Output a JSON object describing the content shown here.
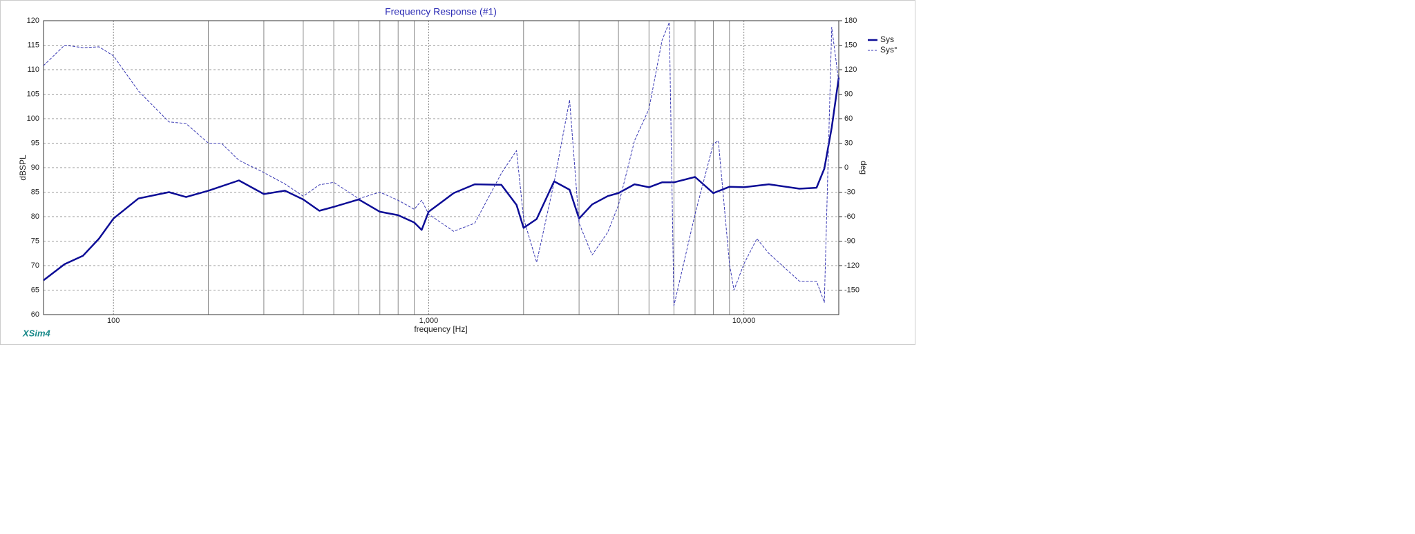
{
  "chart_data": {
    "type": "line",
    "title": "Frequency Response (#1)",
    "x_label": "frequency [Hz]",
    "y_label": "dBSPL",
    "y2_label": "deg",
    "watermark": "XSim4",
    "xscale": "log",
    "xlim": [
      60,
      20000
    ],
    "xticks": [
      100,
      {
        "value": 1000,
        "label": "1,000"
      },
      {
        "value": 10000,
        "label": "10,000"
      }
    ],
    "x_minor_grid": [
      200,
      300,
      400,
      500,
      600,
      700,
      800,
      900,
      2000,
      3000,
      4000,
      5000,
      6000,
      7000,
      8000,
      9000
    ],
    "ylim": [
      60,
      120
    ],
    "yticks": [
      60,
      65,
      70,
      75,
      80,
      85,
      90,
      95,
      100,
      105,
      110,
      115,
      120
    ],
    "y2lim": [
      -180,
      180
    ],
    "y2ticks": [
      -150,
      -120,
      -90,
      -60,
      -30,
      0,
      30,
      60,
      90,
      120,
      150,
      180
    ],
    "grid": true,
    "legend": "right",
    "series": [
      {
        "name": "Sys",
        "color": "#0c0c96",
        "dash": false,
        "x": [
          60,
          70,
          80,
          90,
          100,
          120,
          150,
          170,
          200,
          250,
          300,
          350,
          400,
          450,
          500,
          600,
          700,
          800,
          900,
          950,
          1000,
          1200,
          1400,
          1700,
          1900,
          2000,
          2200,
          2500,
          2800,
          3000,
          3300,
          3700,
          4000,
          4500,
          5000,
          5500,
          6000,
          7000,
          8000,
          9000,
          10000,
          12000,
          15000,
          17000,
          18000,
          19000,
          20000
        ],
        "values": [
          67,
          70.3,
          72,
          75.5,
          79.6,
          83.7,
          85,
          84,
          85.3,
          87.4,
          84.6,
          85.3,
          83.5,
          81.2,
          82,
          83.5,
          81,
          80.3,
          78.8,
          77.3,
          81,
          84.8,
          86.6,
          86.5,
          82.4,
          77.7,
          79.5,
          87.2,
          85.5,
          79.6,
          82.5,
          84.2,
          84.8,
          86.6,
          86,
          87,
          87,
          88.1,
          84.8,
          86.1,
          86,
          86.6,
          85.7,
          85.9,
          89.8,
          98.2,
          108.4
        ]
      },
      {
        "name": "Sys°",
        "color": "#3a3ab4",
        "dash": true,
        "axis": "y2",
        "x": [
          60,
          70,
          80,
          90,
          100,
          120,
          150,
          170,
          200,
          220,
          250,
          300,
          350,
          400,
          450,
          500,
          600,
          700,
          800,
          900,
          950,
          1000,
          1200,
          1400,
          1700,
          1900,
          2000,
          2200,
          2500,
          2800,
          3000,
          3300,
          3700,
          4000,
          4500,
          5000,
          5500,
          5800,
          6000,
          7000,
          8000,
          8300,
          9000,
          9300,
          10000,
          11000,
          12000,
          15000,
          17000,
          18000,
          19000,
          20000
        ],
        "values": [
          125,
          150,
          147,
          148,
          137,
          94,
          56,
          54,
          30,
          30,
          9,
          -6,
          -20,
          -35,
          -21,
          -18,
          -38,
          -30,
          -40,
          -51,
          -40,
          -57,
          -78,
          -68,
          -7,
          21,
          -62,
          -116,
          -18,
          83,
          -68,
          -107,
          -79,
          -46,
          33,
          72,
          156,
          178,
          -169,
          -57,
          29,
          33,
          -118,
          -150,
          -118,
          -87,
          -105,
          -139,
          -139,
          -165,
          172,
          105
        ]
      }
    ]
  }
}
